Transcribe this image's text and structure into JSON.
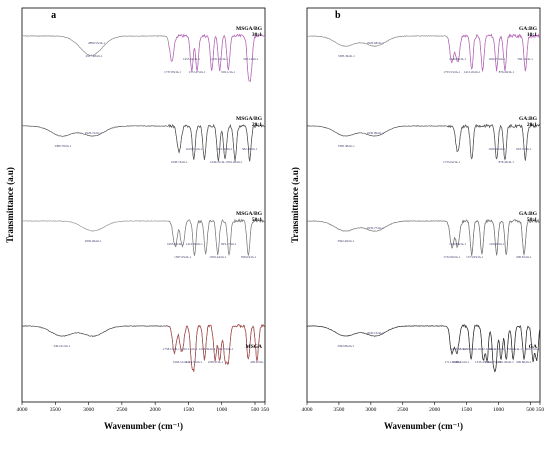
{
  "chart_data": [
    {
      "panel_label": "a",
      "type": "line",
      "xlabel": "Wavenumber (cm⁻¹)",
      "ylabel": "Transmittance (a.u)",
      "xlim": [
        4000,
        350
      ],
      "xticks": [
        "4000",
        "3500",
        "3000",
        "2500",
        "2000",
        "1500",
        "1000",
        "500",
        "350"
      ],
      "xtick_values": [
        4000,
        3500,
        3000,
        2500,
        2000,
        1500,
        1000,
        500,
        350
      ],
      "series": [
        {
          "name": "MSGA/BG 30:1",
          "color": "#8a8a8a",
          "peak_color": "#cc55cc",
          "peaks": [
            3000,
            2920,
            1750,
            1450,
            1370,
            1150,
            1030,
            900,
            600,
            560
          ],
          "labels": [
            "2917.48cm-1",
            "2880.55cm-1",
            "1737.85cm-1",
            "1455.52cm-1",
            "1372.47cm-1",
            "1031.51cm-1",
            "902.1cm-1",
            "562.14cm-1"
          ]
        },
        {
          "name": "MSGA/BG 20:1",
          "color": "#555555",
          "peak_color": "#555555",
          "peaks": [
            3400,
            2930,
            1640,
            1420,
            1260,
            1050,
            950,
            800,
            580
          ],
          "labels": [
            "3386.78cm-1",
            "2929.72cm-1",
            "1638.74cm-1",
            "1419.51cm-1",
            "1049.21cm-1",
            "951.20cm-1",
            "801.48cm-1",
            "582.46cm-1"
          ]
        },
        {
          "name": "MSGA/BG 50:1",
          "color": "#999999",
          "peak_color": "#777777",
          "peaks": [
            2930,
            1700,
            1590,
            1410,
            1240,
            1060,
            890,
            600
          ],
          "labels": [
            "2930.49cm-1",
            "1695.66cm-1",
            "1587.63cm-1",
            "1412.81cm-1",
            "1059.44cm-1",
            "893.17cm-1",
            "598.63cm-1"
          ]
        },
        {
          "name": "MSGA",
          "color": "#444444",
          "peak_color": "#cc4444",
          "peaks": [
            3400,
            2930,
            1710,
            1600,
            1450,
            1410,
            1260,
            1100,
            1030,
            950,
            900,
            600,
            470
          ],
          "labels": [
            "3401.01cm-1",
            "1758.12cm-1",
            "1606.51cm-1",
            "1491.11cm-1",
            "1416.78cm-1",
            "1218.36cm-1",
            "1095.2cm-1",
            "941.74cm-1",
            "458.22cm-1"
          ]
        }
      ]
    },
    {
      "panel_label": "b",
      "type": "line",
      "xlabel": "Wavenumber (cm⁻¹)",
      "ylabel": "Transmittance (a.u)",
      "xlim": [
        4000,
        350
      ],
      "xticks": [
        "4000",
        "3500",
        "3000",
        "2500",
        "2000",
        "1500",
        "1000",
        "500",
        "350"
      ],
      "xtick_values": [
        4000,
        3500,
        3000,
        2500,
        2000,
        1500,
        1000,
        500,
        350
      ],
      "series": [
        {
          "name": "GA:BG 10:1",
          "color": "#8a8a8a",
          "peak_color": "#cc55cc",
          "peaks": [
            3400,
            2930,
            1730,
            1640,
            1420,
            1250,
            1030,
            900,
            580
          ],
          "labels": [
            "3383.36cm-1",
            "2929.68cm-1",
            "1733.53cm-1",
            "1640.86cm-1",
            "1413.45cm-1",
            "1026.73cm-1",
            "876.40cm-1",
            "582.41cm-1"
          ]
        },
        {
          "name": "GA:BG 20:1",
          "color": "#555555",
          "peak_color": "#555555",
          "peaks": [
            3400,
            2930,
            1640,
            1420,
            1030,
            900,
            580
          ],
          "labels": [
            "3385.38cm-1",
            "2930.99cm-1",
            "1735.62cm-1",
            "1028.16cm-1",
            "878.46cm-1",
            "603.72cm-1"
          ]
        },
        {
          "name": "GA:BG 50:1",
          "color": "#777777",
          "peak_color": "#777777",
          "peaks": [
            3400,
            2930,
            1730,
            1640,
            1420,
            1260,
            1030,
            880,
            600
          ],
          "labels": [
            "3392.49cm-1",
            "2930.77cm-1",
            "1732.90cm-1",
            "1640.84cm-1",
            "1373.83cm-1",
            "1026.8cm-1",
            "600.81cm-1"
          ]
        },
        {
          "name": "GA",
          "color": "#333333",
          "peak_color": "#333333",
          "peaks": [
            3400,
            2930,
            1730,
            1650,
            1430,
            1240,
            1180,
            1080,
            1040,
            960,
            880,
            770,
            600,
            460,
            400
          ],
          "labels": [
            "3392.86cm-1",
            "2930.16cm-1",
            "1711.02cm-1",
            "1613.38cm-1",
            "1588.01cm-1",
            "1431.30cm-1",
            "1235.47cm-1",
            "1182.12cm-1",
            "1084.27cm-1",
            "1041.47cm-1",
            "881.29cm-1",
            "753.46cm-1",
            "600.86cm-1",
            "466.7cm-1"
          ]
        }
      ]
    }
  ]
}
